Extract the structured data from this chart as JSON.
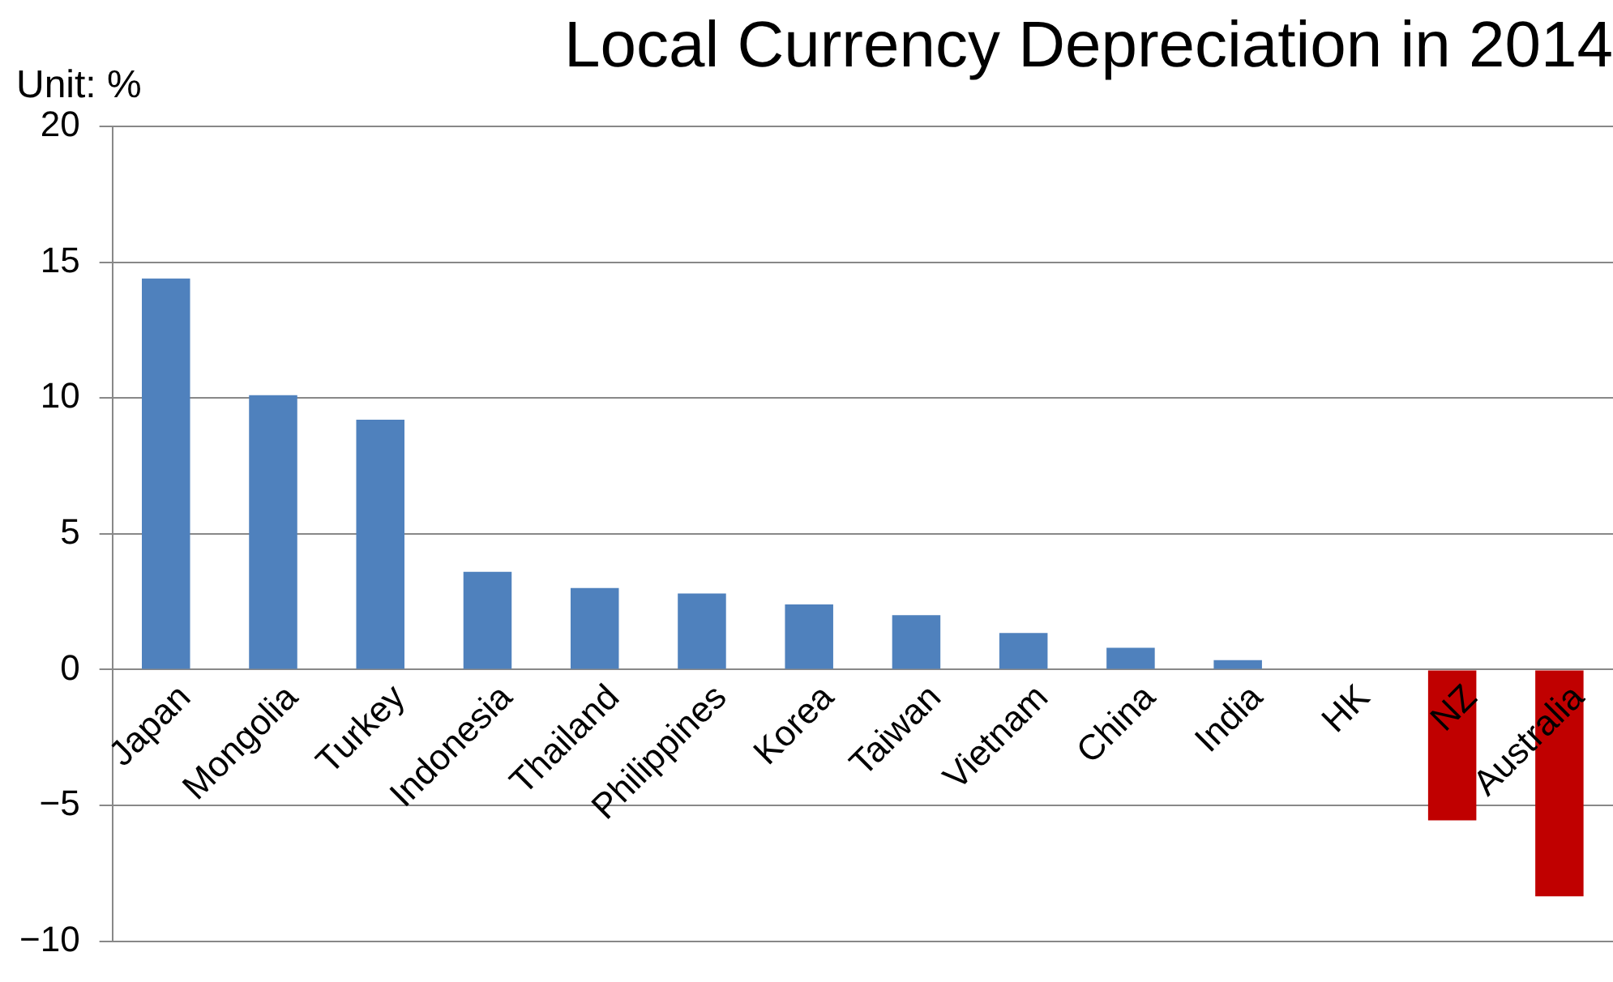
{
  "chart_data": {
    "type": "bar",
    "title": "Local Currency Depreciation in 2014",
    "ylabel": "Unit: %",
    "categories": [
      "Japan",
      "Mongolia",
      "Turkey",
      "Indonesia",
      "Thailand",
      "Philippines",
      "Korea",
      "Taiwan",
      "Vietnam",
      "China",
      "India",
      "HK",
      "NZ",
      "Australia"
    ],
    "values": [
      14.4,
      10.1,
      9.2,
      3.6,
      3.0,
      2.8,
      2.4,
      2.0,
      1.35,
      0.8,
      0.35,
      0,
      -5.55,
      -8.35
    ],
    "colors": [
      "#4f81bd",
      "#4f81bd",
      "#4f81bd",
      "#4f81bd",
      "#4f81bd",
      "#4f81bd",
      "#4f81bd",
      "#4f81bd",
      "#4f81bd",
      "#4f81bd",
      "#4f81bd",
      "#4f81bd",
      "#c00000",
      "#c00000"
    ],
    "ylim": [
      -10,
      20
    ],
    "yticks": [
      -10,
      -5,
      0,
      5,
      10,
      15,
      20
    ],
    "grid": "y",
    "legend": false
  }
}
